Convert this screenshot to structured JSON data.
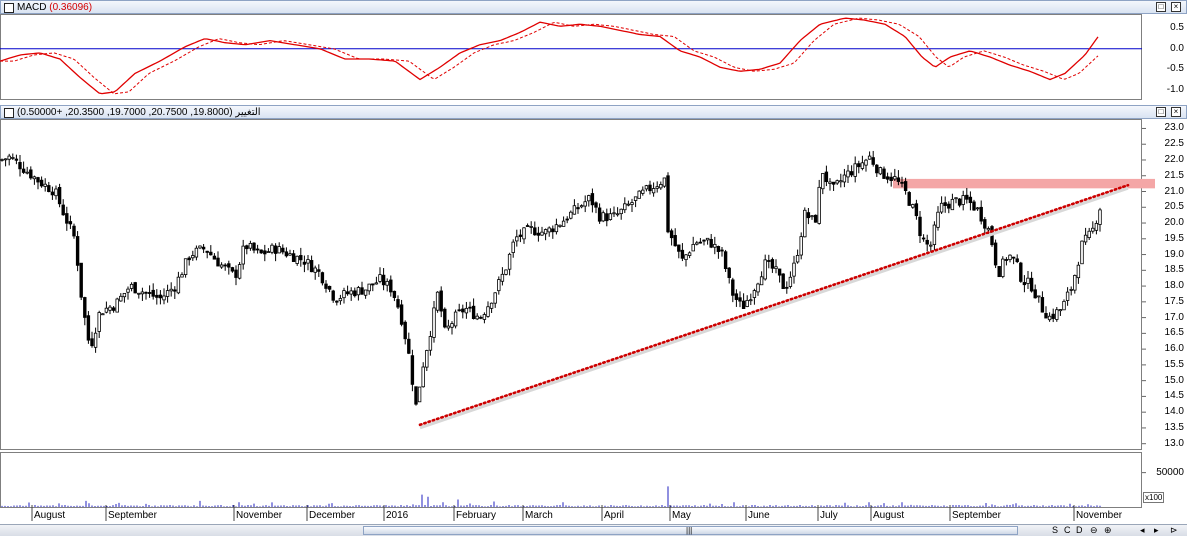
{
  "macd_panel": {
    "title": "MACD",
    "value": "(0.36096)",
    "yticks": [
      "0.5",
      "0.0",
      "-0.5",
      "-1.0"
    ],
    "ylim": [
      -1.25,
      0.85
    ]
  },
  "price_panel": {
    "title": "التغيير",
    "values": "(19.8000, 20.7500, 19.7000, 20.3500, +0.50000)",
    "yticks": [
      "23.0",
      "22.5",
      "22.0",
      "21.5",
      "21.0",
      "20.5",
      "20.0",
      "19.5",
      "19.0",
      "18.5",
      "18.0",
      "17.5",
      "17.0",
      "16.5",
      "16.0",
      "15.5",
      "15.0",
      "14.5",
      "14.0",
      "13.5",
      "13.0"
    ],
    "ylim": [
      12.8,
      23.3
    ]
  },
  "volume_panel": {
    "yticks": [
      "50000"
    ],
    "multiplier": "x100",
    "ylim": [
      0,
      80000
    ]
  },
  "x_axis": {
    "months": [
      "August",
      "September",
      "November",
      "December",
      "2016",
      "February",
      "March",
      "April",
      "May",
      "June",
      "July",
      "August",
      "September",
      "November"
    ]
  },
  "window_buttons": {
    "restore": "□",
    "close": "×"
  },
  "status": {
    "grip": "|||",
    "nav": [
      "S",
      "C",
      "D",
      "⊖",
      "⊕",
      "◂",
      "▸",
      "⊳"
    ]
  },
  "colors": {
    "macd": "#e00000",
    "signal": "#e00000",
    "zero_line": "#0000cc",
    "volume": "#2020c0",
    "trendline": "#cc0000",
    "resistance_band": "#f4a6a6"
  },
  "chart_data": {
    "type": "candlestick",
    "price_anchors": [
      [
        0,
        22.0
      ],
      [
        10,
        22.1
      ],
      [
        25,
        21.7
      ],
      [
        40,
        21.3
      ],
      [
        55,
        21.0
      ],
      [
        65,
        20.2
      ],
      [
        75,
        19.5
      ],
      [
        82,
        17.5
      ],
      [
        90,
        16.0
      ],
      [
        100,
        17.2
      ],
      [
        115,
        17.4
      ],
      [
        130,
        18.0
      ],
      [
        145,
        17.8
      ],
      [
        160,
        17.6
      ],
      [
        175,
        18.0
      ],
      [
        190,
        19.0
      ],
      [
        205,
        19.2
      ],
      [
        220,
        18.7
      ],
      [
        235,
        18.3
      ],
      [
        245,
        19.3
      ],
      [
        260,
        19.0
      ],
      [
        275,
        19.2
      ],
      [
        290,
        19.0
      ],
      [
        305,
        18.8
      ],
      [
        320,
        18.4
      ],
      [
        335,
        17.6
      ],
      [
        350,
        17.8
      ],
      [
        365,
        17.9
      ],
      [
        380,
        18.2
      ],
      [
        392,
        17.9
      ],
      [
        400,
        17.2
      ],
      [
        408,
        16.0
      ],
      [
        416,
        14.2
      ],
      [
        423,
        15.5
      ],
      [
        430,
        16.5
      ],
      [
        438,
        17.8
      ],
      [
        445,
        16.5
      ],
      [
        455,
        17.0
      ],
      [
        465,
        17.3
      ],
      [
        480,
        17.0
      ],
      [
        490,
        17.5
      ],
      [
        505,
        18.5
      ],
      [
        515,
        19.5
      ],
      [
        530,
        19.8
      ],
      [
        545,
        19.7
      ],
      [
        560,
        20.0
      ],
      [
        575,
        20.4
      ],
      [
        590,
        20.8
      ],
      [
        600,
        20.2
      ],
      [
        615,
        20.2
      ],
      [
        630,
        20.6
      ],
      [
        645,
        21.0
      ],
      [
        665,
        21.4
      ],
      [
        668,
        19.8
      ],
      [
        675,
        19.3
      ],
      [
        682,
        18.8
      ],
      [
        695,
        19.4
      ],
      [
        710,
        19.4
      ],
      [
        722,
        19.0
      ],
      [
        732,
        17.8
      ],
      [
        742,
        17.3
      ],
      [
        752,
        17.8
      ],
      [
        765,
        18.7
      ],
      [
        775,
        18.5
      ],
      [
        785,
        17.9
      ],
      [
        795,
        18.7
      ],
      [
        805,
        20.3
      ],
      [
        815,
        20.0
      ],
      [
        822,
        21.7
      ],
      [
        832,
        21.0
      ],
      [
        845,
        21.5
      ],
      [
        858,
        21.8
      ],
      [
        870,
        22.1
      ],
      [
        880,
        21.6
      ],
      [
        895,
        21.4
      ],
      [
        905,
        21.0
      ],
      [
        915,
        20.3
      ],
      [
        922,
        19.5
      ],
      [
        930,
        19.2
      ],
      [
        940,
        20.5
      ],
      [
        955,
        20.7
      ],
      [
        968,
        20.7
      ],
      [
        978,
        20.4
      ],
      [
        990,
        19.7
      ],
      [
        998,
        18.4
      ],
      [
        1008,
        19.0
      ],
      [
        1015,
        18.8
      ],
      [
        1022,
        18.2
      ],
      [
        1032,
        18.0
      ],
      [
        1042,
        17.3
      ],
      [
        1050,
        17.0
      ],
      [
        1062,
        17.3
      ],
      [
        1072,
        18.0
      ],
      [
        1082,
        19.3
      ],
      [
        1092,
        19.7
      ],
      [
        1100,
        20.5
      ]
    ],
    "gap_after_x": 665,
    "trendline": {
      "from": [
        420,
        13.6
      ],
      "to": [
        1128,
        21.2
      ],
      "style": "dotted"
    },
    "resistance_band": {
      "from_x": 893,
      "to_x": 1155,
      "y_low": 21.1,
      "y_high": 21.4
    },
    "macd_anchors": [
      [
        0,
        -0.3
      ],
      [
        20,
        -0.15
      ],
      [
        40,
        -0.1
      ],
      [
        60,
        -0.25
      ],
      [
        80,
        -0.7
      ],
      [
        100,
        -1.1
      ],
      [
        115,
        -1.05
      ],
      [
        135,
        -0.6
      ],
      [
        160,
        -0.3
      ],
      [
        185,
        0.05
      ],
      [
        205,
        0.25
      ],
      [
        225,
        0.15
      ],
      [
        245,
        0.1
      ],
      [
        270,
        0.2
      ],
      [
        295,
        0.1
      ],
      [
        320,
        0.0
      ],
      [
        345,
        -0.25
      ],
      [
        370,
        -0.25
      ],
      [
        395,
        -0.3
      ],
      [
        420,
        -0.75
      ],
      [
        440,
        -0.45
      ],
      [
        460,
        -0.1
      ],
      [
        480,
        0.1
      ],
      [
        500,
        0.2
      ],
      [
        520,
        0.4
      ],
      [
        540,
        0.65
      ],
      [
        560,
        0.55
      ],
      [
        580,
        0.6
      ],
      [
        600,
        0.55
      ],
      [
        620,
        0.45
      ],
      [
        640,
        0.35
      ],
      [
        660,
        0.3
      ],
      [
        680,
        -0.05
      ],
      [
        700,
        -0.2
      ],
      [
        720,
        -0.45
      ],
      [
        740,
        -0.55
      ],
      [
        760,
        -0.5
      ],
      [
        780,
        -0.35
      ],
      [
        800,
        0.2
      ],
      [
        820,
        0.6
      ],
      [
        845,
        0.75
      ],
      [
        865,
        0.7
      ],
      [
        885,
        0.6
      ],
      [
        905,
        0.3
      ],
      [
        922,
        -0.2
      ],
      [
        935,
        -0.45
      ],
      [
        950,
        -0.2
      ],
      [
        970,
        -0.05
      ],
      [
        990,
        -0.2
      ],
      [
        1010,
        -0.4
      ],
      [
        1030,
        -0.55
      ],
      [
        1050,
        -0.75
      ],
      [
        1065,
        -0.6
      ],
      [
        1085,
        -0.15
      ],
      [
        1100,
        0.36
      ]
    ],
    "volume_spikes": [
      [
        88,
        9000
      ],
      [
        120,
        6000
      ],
      [
        200,
        9000
      ],
      [
        240,
        7000
      ],
      [
        423,
        18000
      ],
      [
        430,
        15000
      ],
      [
        460,
        11000
      ],
      [
        495,
        8000
      ],
      [
        668,
        30000
      ],
      [
        710,
        5000
      ],
      [
        735,
        7000
      ],
      [
        870,
        7000
      ],
      [
        1015,
        4000
      ],
      [
        1090,
        4000
      ]
    ]
  }
}
